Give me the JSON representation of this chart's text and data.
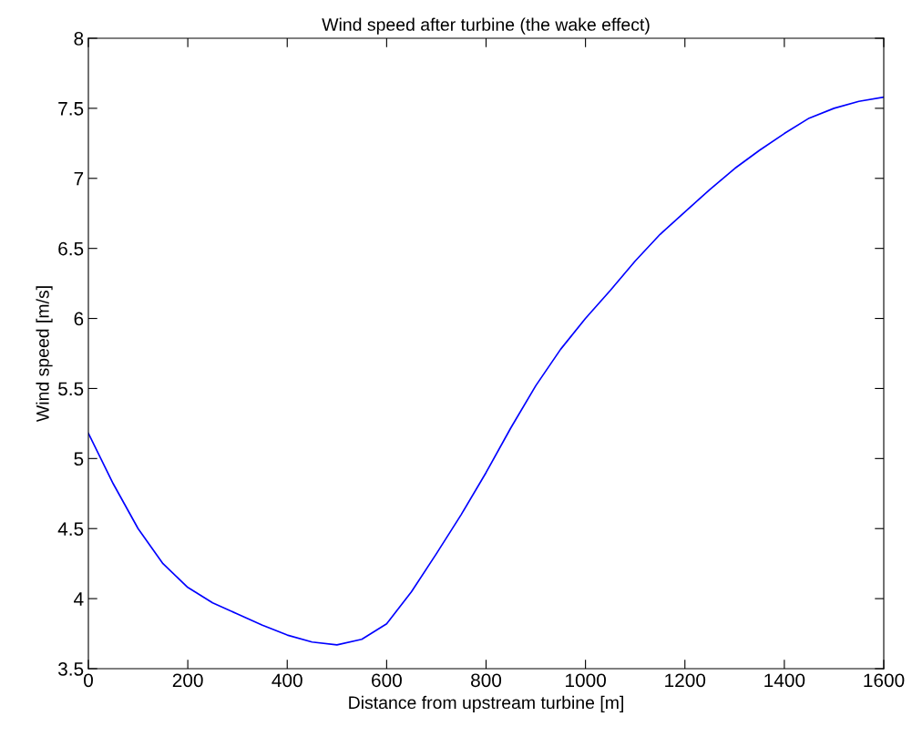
{
  "chart_data": {
    "type": "line",
    "title": "Wind speed after turbine (the wake effect)",
    "xlabel": "Distance from upstream turbine [m]",
    "ylabel": "Wind speed [m/s]",
    "x": [
      0,
      50,
      100,
      150,
      200,
      250,
      300,
      350,
      400,
      450,
      500,
      550,
      600,
      650,
      700,
      750,
      800,
      850,
      900,
      950,
      1000,
      1050,
      1100,
      1150,
      1200,
      1250,
      1300,
      1350,
      1400,
      1450,
      1500,
      1550,
      1600
    ],
    "series": [
      {
        "color": "#0000ff",
        "values": [
          5.18,
          4.82,
          4.5,
          4.25,
          4.08,
          3.97,
          3.89,
          3.81,
          3.74,
          3.69,
          3.67,
          3.71,
          3.82,
          4.05,
          4.32,
          4.6,
          4.9,
          5.22,
          5.52,
          5.78,
          6.0,
          6.2,
          6.41,
          6.6,
          6.76,
          6.92,
          7.07,
          7.2,
          7.32,
          7.43,
          7.5,
          7.55,
          7.58
        ]
      }
    ],
    "xlim": [
      0,
      1600
    ],
    "ylim": [
      3.5,
      8
    ],
    "xticks": [
      0,
      200,
      400,
      600,
      800,
      1000,
      1200,
      1400,
      1600
    ],
    "yticks": [
      3.5,
      4,
      4.5,
      5,
      5.5,
      6,
      6.5,
      7,
      7.5,
      8
    ],
    "grid": false,
    "legend": false,
    "line_style": "solid"
  }
}
